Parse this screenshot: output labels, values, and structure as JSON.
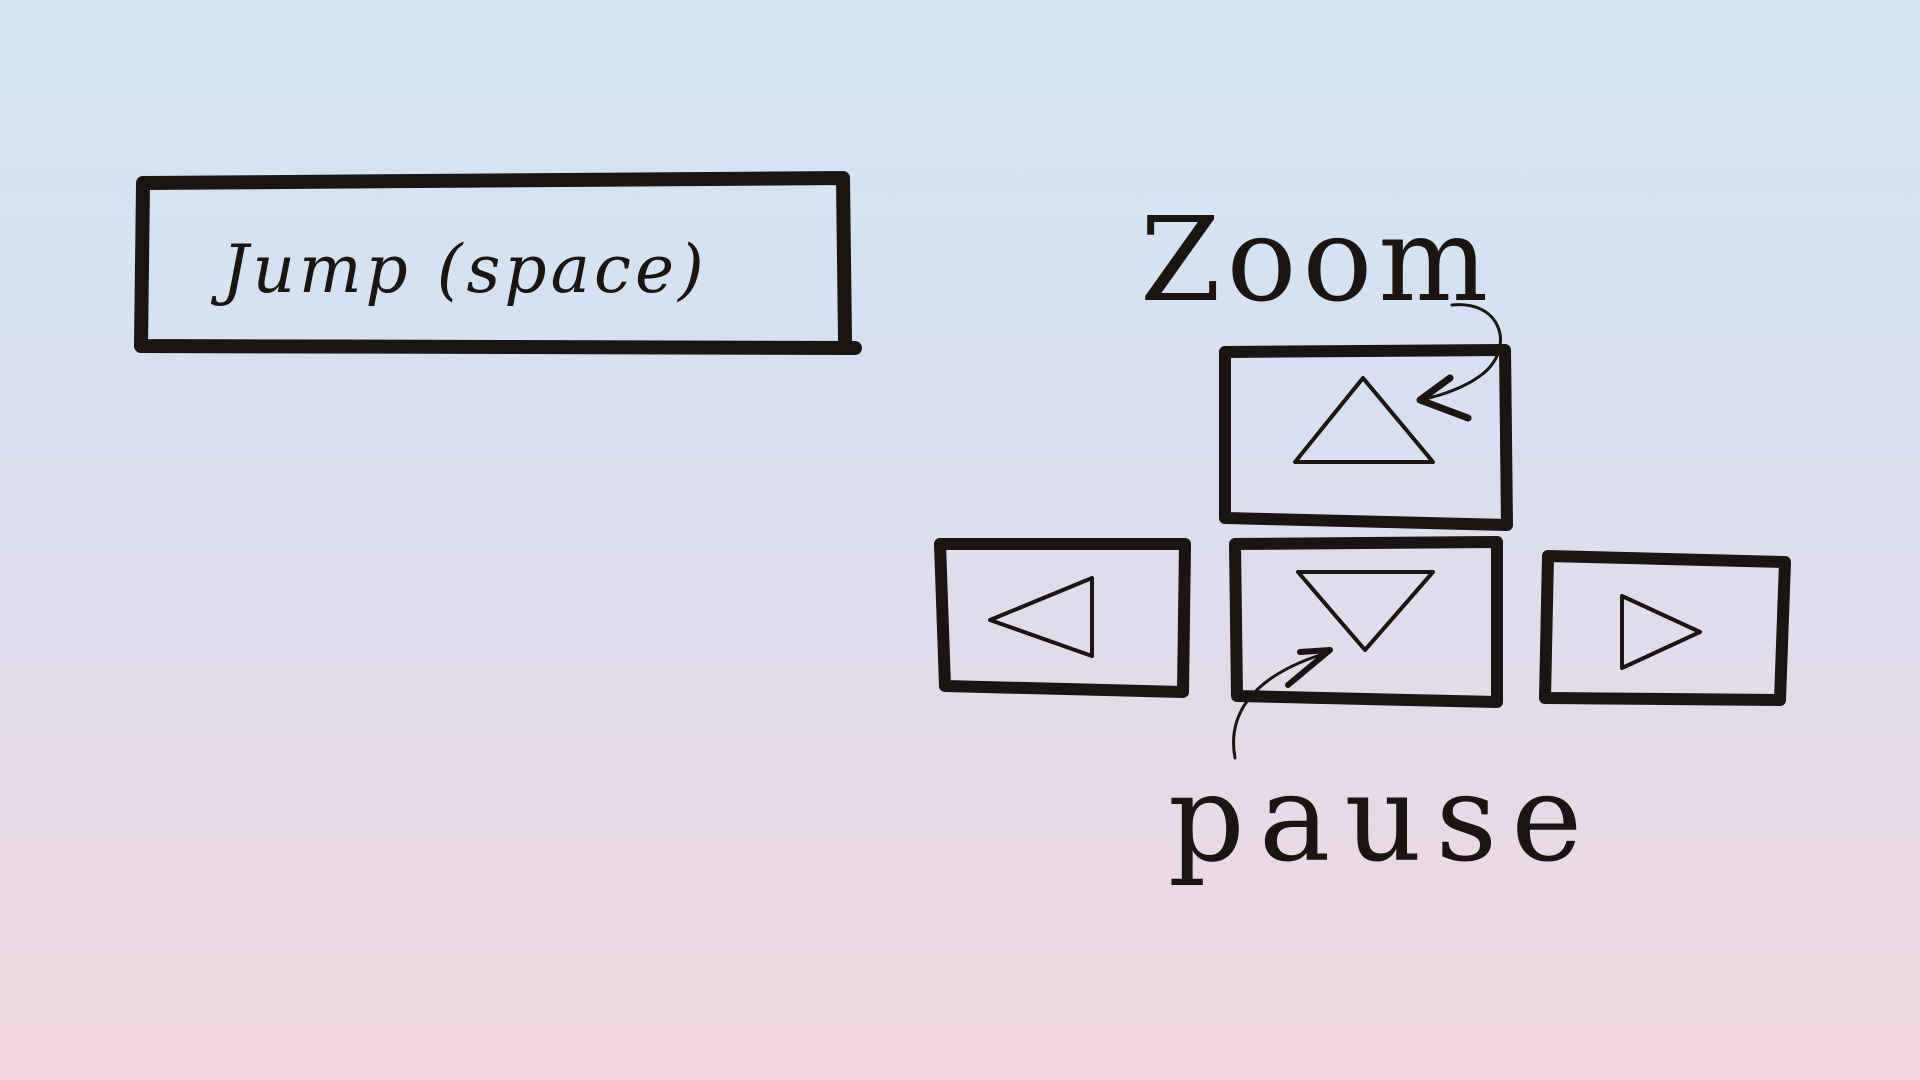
{
  "jump_button": {
    "label": "Jump (space)"
  },
  "annotations": {
    "zoom": "Zoom",
    "pause": "pause"
  },
  "arrow_keys": [
    {
      "key": "up",
      "icon": "triangle-up-icon"
    },
    {
      "key": "left",
      "icon": "triangle-left-icon"
    },
    {
      "key": "down",
      "icon": "triangle-down-icon"
    },
    {
      "key": "right",
      "icon": "triangle-right-icon"
    }
  ],
  "colors": {
    "ink": "#1a1412",
    "bg_top": "#d3e6f4",
    "bg_bottom": "#f1d6dd"
  }
}
